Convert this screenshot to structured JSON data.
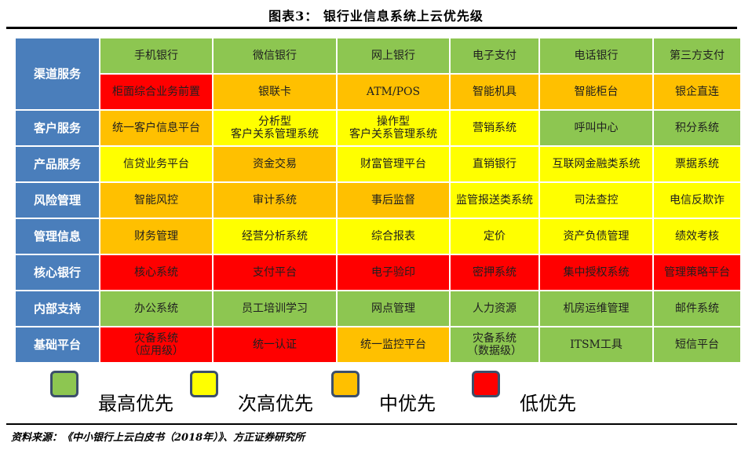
{
  "title": "图表3：  银行业信息系统上云优先级",
  "rows": [
    {
      "category": "渠道服务",
      "cells": [
        {
          "text": "手机银行",
          "priority": "green"
        },
        {
          "text": "微信银行",
          "priority": "green"
        },
        {
          "text": "网上银行",
          "priority": "green"
        },
        {
          "text": "电子支付",
          "priority": "green"
        },
        {
          "text": "电话银行",
          "priority": "green"
        },
        {
          "text": "第三方支付",
          "priority": "green"
        }
      ]
    },
    {
      "category": "",
      "cells": [
        {
          "text": "柜面综合业务前置",
          "priority": "red"
        },
        {
          "text": "银联卡",
          "priority": "orange"
        },
        {
          "text": "ATM/POS",
          "priority": "orange"
        },
        {
          "text": "智能机具",
          "priority": "orange"
        },
        {
          "text": "智能柜台",
          "priority": "orange"
        },
        {
          "text": "银企直连",
          "priority": "orange"
        }
      ]
    },
    {
      "category": "客户服务",
      "cells": [
        {
          "text": "统一客户信息平台",
          "priority": "orange"
        },
        {
          "text": "分析型\n客户关系管理系统",
          "priority": "yellow"
        },
        {
          "text": "操作型\n客户关系管理系统",
          "priority": "yellow"
        },
        {
          "text": "营销系统",
          "priority": "yellow"
        },
        {
          "text": "呼叫中心",
          "priority": "green"
        },
        {
          "text": "积分系统",
          "priority": "green"
        }
      ]
    },
    {
      "category": "产品服务",
      "cells": [
        {
          "text": "信贷业务平台",
          "priority": "yellow"
        },
        {
          "text": "资金交易",
          "priority": "orange"
        },
        {
          "text": "财富管理平台",
          "priority": "yellow"
        },
        {
          "text": "直销银行",
          "priority": "yellow"
        },
        {
          "text": "互联网金融类系统",
          "priority": "yellow"
        },
        {
          "text": "票据系统",
          "priority": "yellow"
        }
      ]
    },
    {
      "category": "风险管理",
      "cells": [
        {
          "text": "智能风控",
          "priority": "orange"
        },
        {
          "text": "审计系统",
          "priority": "orange"
        },
        {
          "text": "事后监督",
          "priority": "orange"
        },
        {
          "text": "监管报送类系统",
          "priority": "yellow"
        },
        {
          "text": "司法查控",
          "priority": "yellow"
        },
        {
          "text": "电信反欺诈",
          "priority": "yellow"
        }
      ]
    },
    {
      "category": "管理信息",
      "cells": [
        {
          "text": "财务管理",
          "priority": "orange"
        },
        {
          "text": "经营分析系统",
          "priority": "yellow"
        },
        {
          "text": "综合报表",
          "priority": "yellow"
        },
        {
          "text": "定价",
          "priority": "yellow"
        },
        {
          "text": "资产负债管理",
          "priority": "yellow"
        },
        {
          "text": "绩效考核",
          "priority": "yellow"
        }
      ]
    },
    {
      "category": "核心银行",
      "cells": [
        {
          "text": "核心系统",
          "priority": "red"
        },
        {
          "text": "支付平台",
          "priority": "red"
        },
        {
          "text": "电子验印",
          "priority": "red"
        },
        {
          "text": "密押系统",
          "priority": "red"
        },
        {
          "text": "集中授权系统",
          "priority": "red"
        },
        {
          "text": "管理策略平台",
          "priority": "red"
        }
      ]
    },
    {
      "category": "内部支持",
      "cells": [
        {
          "text": "办公系统",
          "priority": "green"
        },
        {
          "text": "员工培训学习",
          "priority": "green"
        },
        {
          "text": "网点管理",
          "priority": "green"
        },
        {
          "text": "人力资源",
          "priority": "green"
        },
        {
          "text": "机房运维管理",
          "priority": "green"
        },
        {
          "text": "邮件系统",
          "priority": "green"
        }
      ]
    },
    {
      "category": "基础平台",
      "cells": [
        {
          "text": "灾备系统\n（应用级）",
          "priority": "red"
        },
        {
          "text": "统一认证",
          "priority": "red"
        },
        {
          "text": "统一监控平台",
          "priority": "orange"
        },
        {
          "text": "灾备系统\n（数据级）",
          "priority": "green"
        },
        {
          "text": "ITSM工具",
          "priority": "green"
        },
        {
          "text": "短信平台",
          "priority": "green"
        }
      ]
    }
  ],
  "legend": [
    {
      "label": "最高优先",
      "color": "#8dc651"
    },
    {
      "label": "次高优先",
      "color": "#ffff00"
    },
    {
      "label": "中优先",
      "color": "#ffc000"
    },
    {
      "label": "低优先",
      "color": "#ff0000"
    }
  ],
  "colors": {
    "header": "#4a7ebb",
    "green": "#8dc651",
    "yellow": "#ffff00",
    "orange": "#ffc000",
    "red": "#ff0000"
  },
  "source": "资料来源：《中小银行上云白皮书（2018年）》、方正证券研究所"
}
